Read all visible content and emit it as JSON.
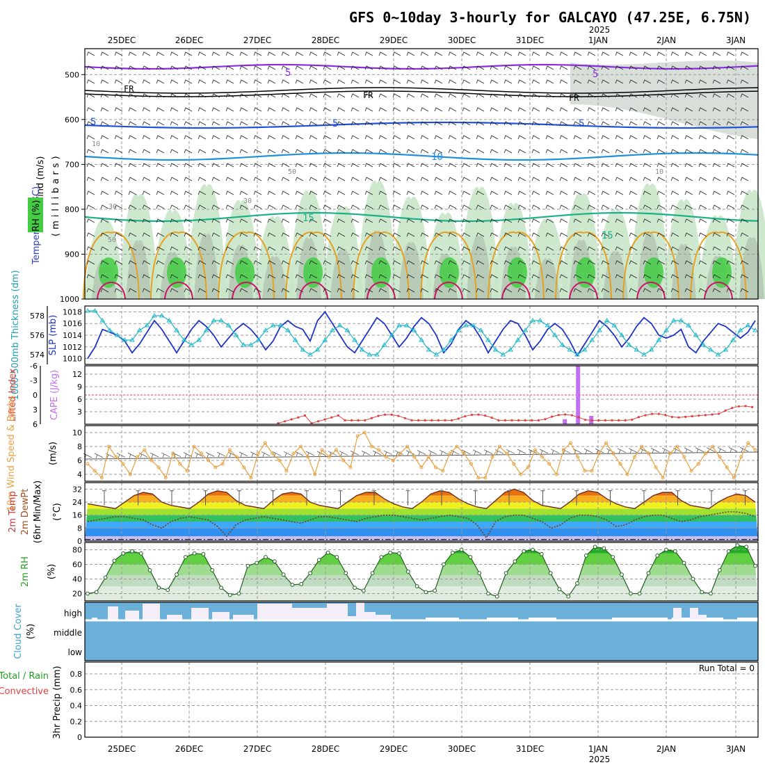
{
  "title": "GFS 0~10day 3-hourly for GALCAYO (47.25E, 6.75N)",
  "year_label": "2025",
  "run_total_label": "Run Total = 0",
  "days": [
    "25DEC",
    "26DEC",
    "27DEC",
    "28DEC",
    "29DEC",
    "30DEC",
    "31DEC",
    "1JAN",
    "2JAN",
    "3JAN"
  ],
  "colors": {
    "rh_green": "#44cc44",
    "rh_light": "#c8e6c8",
    "rh_gray": "#a8b8a8",
    "temp_purple": "#8a2be2",
    "temp_blue": "#1e50dc",
    "temp_cyan": "#1e90dc",
    "temp_teal": "#1ab08a",
    "temp_orange": "#e8a020",
    "temp_magenta": "#d0106a",
    "slp_blue": "#1e32c8",
    "thick_cyan": "#20b8c8",
    "cape_violet": "#c070f0",
    "li_red": "#e04040",
    "wind_orange": "#e8a040",
    "cloud_blue": "#6ab0d8"
  },
  "panels": {
    "upper": {
      "ylabel": "(millibars)",
      "legend_wind": "Wind (m/s)",
      "legend_temp": "Temperature (°C)",
      "legend_rh": "RH (%)",
      "pressure_ticks": [
        "500",
        "600",
        "700",
        "800",
        "900",
        "1000"
      ],
      "contour_labels": {
        "five_a": "5",
        "five_b": "5",
        "five_c": "5",
        "five_d": "5",
        "five_e": "5",
        "ten": "10",
        "fifteen_a": "15",
        "fifteen_b": "15",
        "fr_a": "FR",
        "fr_b": "FR",
        "fr_c": "FR",
        "rh_a": "30",
        "rh_b": "50",
        "rh_c": "10",
        "rh_d": "30",
        "rh_e": "50",
        "rh_f": "10"
      }
    },
    "slp": {
      "label_left": "1000-500mb Thickness (dm)",
      "label_right": "SLP (mb)",
      "left_ticks": [
        "578",
        "576",
        "574"
      ],
      "right_ticks": [
        "1018",
        "1016",
        "1014",
        "1012",
        "1010"
      ]
    },
    "cape": {
      "label_left": "Lifted Index",
      "label_right": "CAPE (J/kg)",
      "li_ticks": [
        "-6",
        "-3",
        "0",
        "3",
        "6"
      ],
      "cape_ticks": [
        "12",
        "9",
        "6",
        "3"
      ]
    },
    "wind10": {
      "label_left": "10m Wind Speed & Barbs",
      "unit": "(m/s)",
      "ticks": [
        "10",
        "8",
        "6",
        "4"
      ]
    },
    "temp2m": {
      "label_1": "2m Temp",
      "label_2": "2m DewPt",
      "label_3": "(6hr Min/Max)",
      "unit": "(°C)",
      "ticks": [
        "32",
        "24",
        "16",
        "8",
        "0"
      ]
    },
    "rh2m": {
      "label": "2m RH",
      "unit": "(%)",
      "ticks": [
        "80",
        "60",
        "40",
        "20"
      ]
    },
    "cloud": {
      "label": "Cloud Cover",
      "unit": "(%)",
      "levels": [
        "high",
        "middle",
        "low"
      ]
    },
    "precip": {
      "label_1": "Total / Rain",
      "label_2": "Convective",
      "label_3": "3hr Precip (mm)",
      "ticks": [
        "0.8",
        "0.6",
        "0.4",
        "0.2",
        "0"
      ]
    }
  },
  "chart_data": [
    {
      "type": "line",
      "name": "SLP",
      "x_unit": "3-hour steps from 24DEC 12Z",
      "ylabel": "SLP (mb)",
      "ylim": [
        1009,
        1019
      ],
      "values": [
        1010,
        1012,
        1015,
        1014.5,
        1014,
        1013,
        1011,
        1012.5,
        1014.5,
        1016.5,
        1015,
        1013,
        1011,
        1013,
        1015,
        1016.5,
        1015.5,
        1014,
        1012,
        1013.5,
        1015,
        1016,
        1015,
        1013.5,
        1011.5,
        1013,
        1015.5,
        1016.5,
        1015.5,
        1015,
        1013,
        1016.5,
        1018,
        1016,
        1014,
        1012,
        1011,
        1013,
        1015,
        1017,
        1016,
        1014,
        1012,
        1013.5,
        1015.5,
        1017,
        1016,
        1014,
        1011,
        1012.5,
        1015,
        1016.5,
        1015.5,
        1013.5,
        1011,
        1013,
        1015,
        1016.5,
        1016,
        1014,
        1011.5,
        1013,
        1015,
        1016,
        1015,
        1013,
        1010.5,
        1012.5,
        1014.5,
        1016.5,
        1015.5,
        1014,
        1012,
        1013.5,
        1015.5,
        1017,
        1016,
        1014,
        1013.5,
        1014,
        1015,
        1012,
        1011,
        1013,
        1014.5,
        1016,
        1015.5,
        1014.5,
        1013.5,
        1014.5,
        1016.5
      ]
    },
    {
      "type": "line",
      "name": "1000-500mb Thickness",
      "ylabel": "Thickness (dm)",
      "ylim": [
        573,
        579
      ],
      "values": [
        578.5,
        578.5,
        577.5,
        576.5,
        576,
        575.5,
        575.5,
        576.5,
        577,
        578,
        578,
        577.5,
        576.5,
        575.5,
        575,
        575.5,
        576.5,
        577.5,
        577.5,
        577,
        576,
        575,
        575,
        575.5,
        576.5,
        577,
        577,
        576.5,
        575.5,
        574.5,
        574,
        574.5,
        575.5,
        576.5,
        577,
        576.5,
        575.5,
        574.5,
        574,
        574,
        575,
        576,
        577,
        577,
        576.5,
        575.5,
        574.5,
        574,
        574.5,
        575.5,
        576.5,
        577,
        577,
        576.5,
        575.5,
        574.5,
        574,
        574.5,
        575.5,
        576.5,
        577.5,
        577.5,
        577,
        576,
        575,
        574.5,
        574,
        574.5,
        575.5,
        576.5,
        577.5,
        577,
        576,
        575,
        574.5,
        574,
        574.5,
        575.5,
        576.5,
        577.5,
        577.5,
        577,
        576,
        575,
        574.5,
        574,
        574.5,
        575.5,
        576.5,
        577,
        576.5
      ]
    },
    {
      "type": "bar",
      "name": "CAPE",
      "ylabel": "CAPE (J/kg)",
      "ylim": [
        0,
        14
      ],
      "spikes": [
        {
          "x": 23,
          "value": 1.2
        },
        {
          "x": 24,
          "value": 14
        },
        {
          "x": 25,
          "value": 2
        }
      ]
    },
    {
      "type": "line",
      "name": "10m Wind Speed",
      "ylabel": "m/s",
      "ylim": [
        3,
        11
      ],
      "values": [
        5.5,
        4.5,
        3.5,
        8,
        6.5,
        5.5,
        4,
        6.5,
        7.5,
        6,
        5,
        3.5,
        7,
        5.5,
        4.5,
        8,
        7,
        6,
        5,
        5.5,
        7.5,
        6.5,
        5,
        3.5,
        7,
        8.5,
        7,
        6,
        4.5,
        7,
        8,
        6.5,
        4,
        7.5,
        6.5,
        7.5,
        6,
        5,
        9.5,
        10,
        8,
        7.5,
        6.5,
        6,
        7,
        8,
        6.5,
        5,
        6.5,
        5,
        4.5,
        7,
        8,
        7,
        5.5,
        3.5,
        3.5,
        6.5,
        8,
        7,
        5.5,
        4,
        5,
        7.5,
        6.5,
        5.5,
        4,
        7.5,
        8.5,
        6.5,
        4.5,
        4.5,
        7,
        8.5,
        7,
        5.5,
        4,
        6.5,
        8,
        7,
        5,
        3.5,
        7,
        8,
        6.5,
        4.5,
        5.5,
        7,
        8,
        6.5,
        5,
        3.5,
        6.5,
        8.5,
        7.5
      ]
    },
    {
      "type": "area",
      "name": "2m Temp",
      "ylabel": "°C",
      "ylim": [
        0,
        36
      ],
      "values": [
        23,
        22,
        21,
        20,
        24,
        28,
        30,
        29,
        24,
        22,
        21,
        20,
        24,
        29,
        31,
        30,
        25,
        22,
        21,
        20,
        25,
        29,
        30,
        29,
        24,
        22,
        21,
        20,
        24,
        28,
        30,
        30,
        26,
        23,
        21,
        20,
        24,
        29,
        31,
        30,
        26,
        23,
        21,
        20,
        25,
        30,
        32,
        30,
        25,
        22,
        21,
        20,
        24,
        29,
        31,
        30,
        26,
        23,
        21,
        20,
        24,
        28,
        30,
        30,
        25,
        22,
        21,
        20,
        24,
        27,
        29,
        28,
        24
      ]
    },
    {
      "type": "line",
      "name": "2m DewPt",
      "ylabel": "°C",
      "ylim": [
        0,
        36
      ],
      "values": [
        12,
        13,
        14,
        15,
        15,
        14,
        13,
        10,
        8,
        12,
        14,
        15,
        14,
        13,
        9,
        3,
        10,
        13,
        14,
        15,
        14,
        13,
        12,
        11,
        13,
        15,
        15,
        14,
        13,
        12,
        14,
        15,
        16,
        16,
        15,
        14,
        13,
        14,
        15,
        16,
        15,
        14,
        10,
        2,
        12,
        15,
        16,
        16,
        14,
        12,
        8,
        10,
        14,
        16,
        16,
        15,
        13,
        9,
        10,
        13,
        15,
        16,
        16,
        14,
        12,
        13,
        15,
        16,
        17,
        18,
        18,
        17,
        15
      ]
    },
    {
      "type": "area",
      "name": "2m RH",
      "ylabel": "%",
      "ylim": [
        10,
        90
      ],
      "values": [
        20,
        22,
        42,
        65,
        75,
        78,
        75,
        52,
        28,
        25,
        46,
        70,
        75,
        74,
        52,
        28,
        18,
        20,
        58,
        62,
        70,
        64,
        46,
        32,
        33,
        48,
        66,
        76,
        70,
        48,
        28,
        24,
        48,
        70,
        76,
        75,
        50,
        30,
        22,
        24,
        60,
        76,
        80,
        70,
        48,
        20,
        16,
        48,
        64,
        78,
        80,
        74,
        48,
        26,
        16,
        34,
        72,
        84,
        82,
        70,
        46,
        20,
        20,
        48,
        72,
        80,
        78,
        62,
        40,
        22,
        20,
        52,
        78,
        86,
        84,
        58
      ]
    },
    {
      "type": "bar",
      "name": "3hr Precip",
      "ylabel": "mm",
      "ylim": [
        0,
        1
      ],
      "values": [
        0,
        0,
        0,
        0,
        0,
        0,
        0,
        0,
        0,
        0
      ]
    }
  ]
}
